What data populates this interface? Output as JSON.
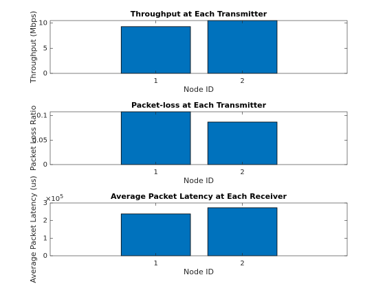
{
  "chart_data": [
    {
      "type": "bar",
      "title": "Throughput at Each Transmitter",
      "xlabel": "Node ID",
      "ylabel": "Throughput (Mbps)",
      "x": [
        1,
        2
      ],
      "values": [
        9.3,
        10.5
      ],
      "color": "#0072bd",
      "xlim": [
        -0.22,
        3.21
      ],
      "xticks": [
        1,
        2
      ],
      "ylim": [
        0,
        10.5
      ],
      "yticks": [
        0,
        5,
        10
      ]
    },
    {
      "type": "bar",
      "title": "Packet-loss at Each Transmitter",
      "xlabel": "Node ID",
      "ylabel": "Packet Loss Ratio",
      "x": [
        1,
        2
      ],
      "values": [
        0.108,
        0.087
      ],
      "color": "#0072bd",
      "xlim": [
        -0.22,
        3.21
      ],
      "xticks": [
        1,
        2
      ],
      "ylim": [
        0,
        0.108
      ],
      "yticks": [
        0,
        0.05,
        0.1
      ]
    },
    {
      "type": "bar",
      "title": "Average Packet Latency at Each Receiver",
      "xlabel": "Node ID",
      "ylabel": "Average Packet Latency (us)",
      "x": [
        1,
        2
      ],
      "values": [
        238000,
        273000
      ],
      "color": "#0072bd",
      "xlim": [
        -0.22,
        3.21
      ],
      "xticks": [
        1,
        2
      ],
      "ylim": [
        0,
        300000
      ],
      "yticks": [
        {
          "value": 0,
          "label": "0"
        },
        {
          "value": 100000,
          "label": "1"
        },
        {
          "value": 200000,
          "label": "2"
        },
        {
          "value": 300000,
          "label": "3"
        }
      ],
      "ymultiplier": {
        "base": "×10",
        "power": "5"
      }
    }
  ]
}
